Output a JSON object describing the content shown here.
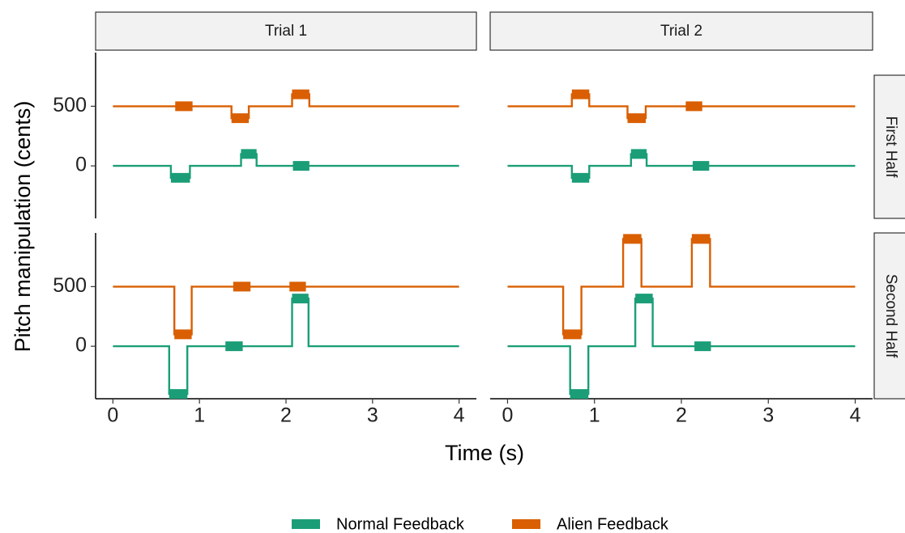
{
  "chart_data": {
    "type": "step-line",
    "x_label": "Time (s)",
    "y_label": "Pitch manipulation (cents)",
    "column_labels": [
      "Trial 1",
      "Trial 2"
    ],
    "row_labels": [
      "First Half",
      "Second Half"
    ],
    "series": [
      {
        "name": "Normal Feedback",
        "color": "#1b9e77"
      },
      {
        "name": "Alien Feedback",
        "color": "#d95f02"
      }
    ],
    "line_range": [
      0,
      4
    ],
    "xlim": [
      -0.2,
      4.2
    ],
    "xticks": [
      0,
      1,
      2,
      3,
      4
    ],
    "ylim": [
      -440,
      950
    ],
    "yticks": [
      0,
      500
    ],
    "panels": [
      [
        [
          {
            "baseline": 0,
            "segments": [
              {
                "start": 0.67,
                "end": 0.89,
                "value": -100
              },
              {
                "start": 1.48,
                "end": 1.66,
                "value": 100
              },
              {
                "start": 2.08,
                "end": 2.27,
                "value": 0
              }
            ]
          },
          {
            "baseline": 500,
            "segments": [
              {
                "start": 0.72,
                "end": 0.92,
                "value": 500
              },
              {
                "start": 1.37,
                "end": 1.57,
                "value": 400
              },
              {
                "start": 2.07,
                "end": 2.27,
                "value": 600
              }
            ]
          }
        ],
        [
          {
            "baseline": 0,
            "segments": [
              {
                "start": 0.74,
                "end": 0.94,
                "value": -100
              },
              {
                "start": 1.42,
                "end": 1.6,
                "value": 100
              },
              {
                "start": 2.13,
                "end": 2.32,
                "value": 0
              }
            ]
          },
          {
            "baseline": 500,
            "segments": [
              {
                "start": 0.74,
                "end": 0.94,
                "value": 600
              },
              {
                "start": 1.38,
                "end": 1.59,
                "value": 400
              },
              {
                "start": 2.05,
                "end": 2.24,
                "value": 500
              }
            ]
          }
        ]
      ],
      [
        [
          {
            "baseline": 0,
            "segments": [
              {
                "start": 0.65,
                "end": 0.86,
                "value": -400
              },
              {
                "start": 1.3,
                "end": 1.5,
                "value": 0
              },
              {
                "start": 2.07,
                "end": 2.26,
                "value": 400
              }
            ]
          },
          {
            "baseline": 500,
            "segments": [
              {
                "start": 0.71,
                "end": 0.91,
                "value": 100
              },
              {
                "start": 1.39,
                "end": 1.59,
                "value": 500
              },
              {
                "start": 2.04,
                "end": 2.23,
                "value": 500
              }
            ]
          }
        ],
        [
          {
            "baseline": 0,
            "segments": [
              {
                "start": 0.72,
                "end": 0.93,
                "value": -400
              },
              {
                "start": 1.47,
                "end": 1.67,
                "value": 400
              },
              {
                "start": 2.15,
                "end": 2.34,
                "value": 0
              }
            ]
          },
          {
            "baseline": 500,
            "segments": [
              {
                "start": 0.64,
                "end": 0.85,
                "value": 100
              },
              {
                "start": 1.33,
                "end": 1.54,
                "value": 900
              },
              {
                "start": 2.12,
                "end": 2.33,
                "value": 900
              }
            ]
          }
        ]
      ]
    ]
  }
}
